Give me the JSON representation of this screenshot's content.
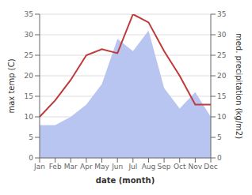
{
  "chart_data": {
    "type": "line",
    "x_label": "date (month)",
    "y_label": "max temp (C)",
    "y2_label": "med. precipitation (kg/m2)",
    "categories": [
      "Jan",
      "Feb",
      "Mar",
      "Apr",
      "May",
      "Jun",
      "Jul",
      "Aug",
      "Sep",
      "Oct",
      "Nov",
      "Dec"
    ],
    "ylim": [
      0,
      35
    ],
    "yticks": [
      0,
      5,
      10,
      15,
      20,
      25,
      30,
      35
    ],
    "y2lim": [
      0,
      35
    ],
    "y2ticks": [
      0,
      5,
      10,
      15,
      20,
      25,
      30,
      35
    ],
    "grid": true,
    "series": [
      {
        "type": "area",
        "axis": "y2",
        "color": "#b8c5f0",
        "values": [
          8,
          8,
          10,
          13,
          18,
          29,
          26,
          31,
          17,
          12,
          16,
          10
        ]
      },
      {
        "type": "line",
        "color": "#c0393b",
        "values": [
          10,
          14,
          19,
          25,
          26.5,
          25.5,
          35,
          33,
          26,
          20,
          13,
          13
        ]
      }
    ]
  }
}
